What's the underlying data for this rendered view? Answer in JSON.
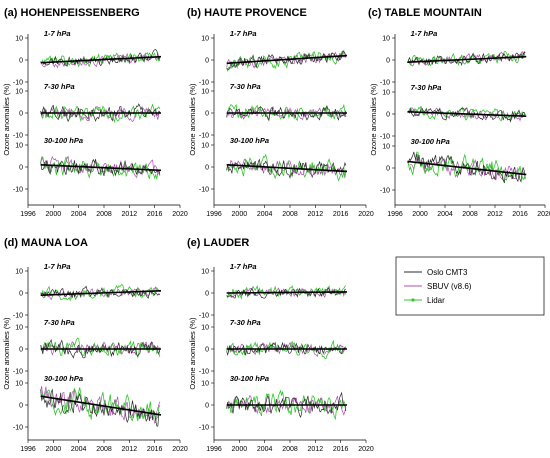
{
  "colors": {
    "oslo": "#2b2b2b",
    "sbuv": "#b04fb0",
    "lidar": "#34c52e",
    "trend": "#000000"
  },
  "legend": {
    "entries": [
      "Oslo CMT3",
      "SBUV (v8.6)",
      "Lidar"
    ]
  },
  "axes": {
    "xticks": [
      "1996",
      "2000",
      "2004",
      "2008",
      "2012",
      "2016",
      "2020"
    ],
    "yticks": [
      "10",
      "0",
      "-10"
    ],
    "ylabel": "Ozone anomalies (%)"
  },
  "chart_data": [
    {
      "type": "line",
      "title": "(a) HOHENPEISSENBERG",
      "xlim": [
        1996,
        2020
      ],
      "ylim": [
        -10,
        10
      ],
      "sublayers": [
        {
          "label": "1-7 hPa",
          "trend": [
            -1.2,
            1.5
          ],
          "amp": 2.5
        },
        {
          "label": "7-30 hPa",
          "trend": [
            0.0,
            0.0
          ],
          "amp": 3.5
        },
        {
          "label": "30-100 hPa",
          "trend": [
            1.0,
            -1.5
          ],
          "amp": 4.0
        }
      ]
    },
    {
      "type": "line",
      "title": "(b) HAUTE PROVENCE",
      "xlim": [
        1996,
        2020
      ],
      "ylim": [
        -10,
        10
      ],
      "sublayers": [
        {
          "label": "1-7 hPa",
          "trend": [
            -1.5,
            2.0
          ],
          "amp": 3.0
        },
        {
          "label": "7-30 hPa",
          "trend": [
            0.0,
            0.0
          ],
          "amp": 3.0
        },
        {
          "label": "30-100 hPa",
          "trend": [
            1.0,
            -2.0
          ],
          "amp": 4.0
        }
      ]
    },
    {
      "type": "line",
      "title": "(c) TABLE MOUNTAIN",
      "xlim": [
        1996,
        2020
      ],
      "ylim": [
        -10,
        10
      ],
      "sublayers": [
        {
          "label": "1-7 hPa",
          "trend": [
            -1.0,
            1.5
          ],
          "amp": 2.5
        },
        {
          "label": "7-30 hPa",
          "trend": [
            1.0,
            -1.0
          ],
          "amp": 2.5
        },
        {
          "label": "30-100 hPa",
          "trend": [
            3.0,
            -3.0
          ],
          "amp": 4.5
        }
      ]
    },
    {
      "type": "line",
      "title": "(d) MAUNA LOA",
      "xlim": [
        1996,
        2020
      ],
      "ylim": [
        -10,
        10
      ],
      "sublayers": [
        {
          "label": "1-7 hPa",
          "trend": [
            -1.0,
            1.0
          ],
          "amp": 2.5
        },
        {
          "label": "7-30 hPa",
          "trend": [
            0.0,
            0.0
          ],
          "amp": 3.5
        },
        {
          "label": "30-100 hPa",
          "trend": [
            4.0,
            -4.5
          ],
          "amp": 5.5
        }
      ]
    },
    {
      "type": "line",
      "title": "(e) LAUDER",
      "xlim": [
        1996,
        2020
      ],
      "ylim": [
        -10,
        10
      ],
      "sublayers": [
        {
          "label": "1-7 hPa",
          "trend": [
            0.0,
            0.5
          ],
          "amp": 2.5
        },
        {
          "label": "7-30 hPa",
          "trend": [
            0.0,
            0.0
          ],
          "amp": 3.0
        },
        {
          "label": "30-100 hPa",
          "trend": [
            0.0,
            0.0
          ],
          "amp": 4.5
        }
      ]
    }
  ]
}
